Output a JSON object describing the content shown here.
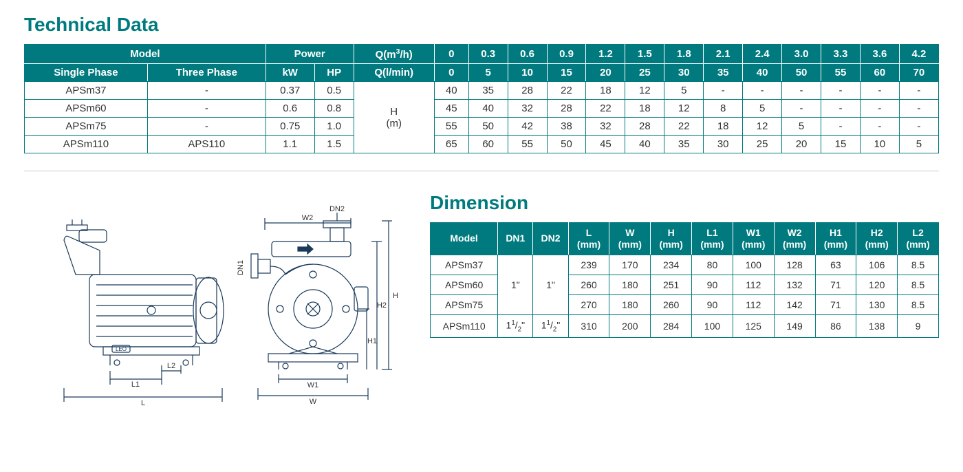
{
  "technical": {
    "title": "Technical Data",
    "headers": {
      "model": "Model",
      "power": "Power",
      "qm3h": "Q(m³/h)",
      "qlmin": "Q(l/min)",
      "single_phase": "Single Phase",
      "three_phase": "Three Phase",
      "kw": "kW",
      "hp": "HP",
      "hm": "H\n(m)"
    },
    "q_m3h": [
      "0",
      "0.3",
      "0.6",
      "0.9",
      "1.2",
      "1.5",
      "1.8",
      "2.1",
      "2.4",
      "3.0",
      "3.3",
      "3.6",
      "4.2"
    ],
    "q_lmin": [
      "0",
      "5",
      "10",
      "15",
      "20",
      "25",
      "30",
      "35",
      "40",
      "50",
      "55",
      "60",
      "70"
    ],
    "rows": [
      {
        "single": "APSm37",
        "three": "-",
        "kw": "0.37",
        "hp": "0.5",
        "h": [
          "40",
          "35",
          "28",
          "22",
          "18",
          "12",
          "5",
          "-",
          "-",
          "-",
          "-",
          "-",
          "-"
        ]
      },
      {
        "single": "APSm60",
        "three": "-",
        "kw": "0.6",
        "hp": "0.8",
        "h": [
          "45",
          "40",
          "32",
          "28",
          "22",
          "18",
          "12",
          "8",
          "5",
          "-",
          "-",
          "-",
          "-"
        ]
      },
      {
        "single": "APSm75",
        "three": "-",
        "kw": "0.75",
        "hp": "1.0",
        "h": [
          "55",
          "50",
          "42",
          "38",
          "32",
          "28",
          "22",
          "18",
          "12",
          "5",
          "-",
          "-",
          "-"
        ]
      },
      {
        "single": "APSm110",
        "three": "APS110",
        "kw": "1.1",
        "hp": "1.5",
        "h": [
          "65",
          "60",
          "55",
          "50",
          "45",
          "40",
          "35",
          "30",
          "25",
          "20",
          "15",
          "10",
          "5"
        ]
      }
    ],
    "colors": {
      "header_bg": "#007a7e",
      "header_fg": "#ffffff",
      "cell_bg": "#ffffff",
      "cell_fg": "#333333",
      "border": "#007a7e"
    }
  },
  "dimension": {
    "title": "Dimension",
    "headers": {
      "model": "Model",
      "dn1": "DN1",
      "dn2": "DN2",
      "l": "L\n(mm)",
      "w": "W\n(mm)",
      "h": "H\n(mm)",
      "l1": "L1\n(mm)",
      "w1": "W1\n(mm)",
      "w2": "W2\n(mm)",
      "h1": "H1\n(mm)",
      "h2": "H2\n(mm)",
      "l2": "L2\n(mm)"
    },
    "rows": [
      {
        "model": "APSm37",
        "l": "239",
        "w": "170",
        "h": "234",
        "l1": "80",
        "w1": "100",
        "w2": "128",
        "h1": "63",
        "h2": "106",
        "l2": "8.5"
      },
      {
        "model": "APSm60",
        "l": "260",
        "w": "180",
        "h": "251",
        "l1": "90",
        "w1": "112",
        "w2": "132",
        "h1": "71",
        "h2": "120",
        "l2": "8.5"
      },
      {
        "model": "APSm75",
        "l": "270",
        "w": "180",
        "h": "260",
        "l1": "90",
        "w1": "112",
        "w2": "142",
        "h1": "71",
        "h2": "130",
        "l2": "8.5"
      },
      {
        "model": "APSm110",
        "l": "310",
        "w": "200",
        "h": "284",
        "l1": "100",
        "w1": "125",
        "w2": "149",
        "h1": "86",
        "h2": "138",
        "l2": "9"
      }
    ],
    "dn_group1": {
      "dn1": "1\"",
      "dn2": "1\""
    },
    "dn_group2": {
      "dn1": "1¹/₂\"",
      "dn2": "1¹/₂\""
    }
  },
  "diagram": {
    "labels": {
      "dn1": "DN1",
      "dn2": "DN2",
      "l": "L",
      "l1": "L1",
      "l2": "L2",
      "w": "W",
      "w1": "W1",
      "w2": "W2",
      "h": "H",
      "h1": "H1",
      "h2": "H2",
      "leo": "LEO"
    },
    "stroke_color": "#1a3a5a",
    "stroke_width": 1.2,
    "text_color": "#333333",
    "font_size": 11
  }
}
